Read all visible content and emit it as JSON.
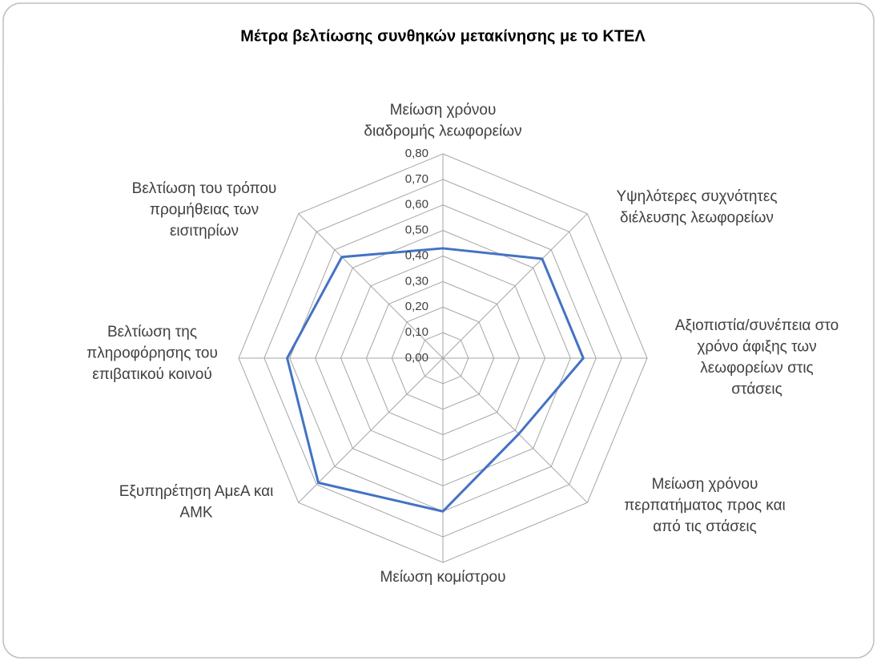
{
  "chart_data": {
    "type": "radar",
    "title": "Μέτρα βελτίωσης συνθηκών μετακίνησης με το ΚΤΕΛ",
    "categories": [
      "Μείωση χρόνου\nδιαδρομής λεωφορείων",
      "Υψηλότερες συχνότητες\nδιέλευσης λεωφορείων",
      "Αξιοπιστία/συνέπεια στο\nχρόνο άφιξης των\nλεωφορείων στις\nστάσεις",
      "Μείωση χρόνου\nπερπατήματος προς και\nαπό τις στάσεις",
      "Μείωση κομίστρου",
      "Εξυπηρέτηση ΑμεΑ και\nΑΜΚ",
      "Βελτίωση της\nπληροφόρησης του\nεπιβατικού κοινού",
      "Βελτίωση του τρόπου\nπρομήθειας των\nεισιτηρίων"
    ],
    "values": [
      0.43,
      0.55,
      0.55,
      0.42,
      0.6,
      0.69,
      0.61,
      0.56
    ],
    "color": "#4472c4",
    "ylim": [
      0,
      0.8
    ],
    "yticks": [
      {
        "value": 0,
        "label": "0,00"
      },
      {
        "value": 0.1,
        "label": "0,10"
      },
      {
        "value": 0.2,
        "label": "0,20"
      },
      {
        "value": 0.3,
        "label": "0,30"
      },
      {
        "value": 0.4,
        "label": "0,40"
      },
      {
        "value": 0.5,
        "label": "0,50"
      },
      {
        "value": 0.6,
        "label": "0,60"
      },
      {
        "value": 0.7,
        "label": "0,70"
      },
      {
        "value": 0.8,
        "label": "0,80"
      }
    ],
    "grid": true
  }
}
